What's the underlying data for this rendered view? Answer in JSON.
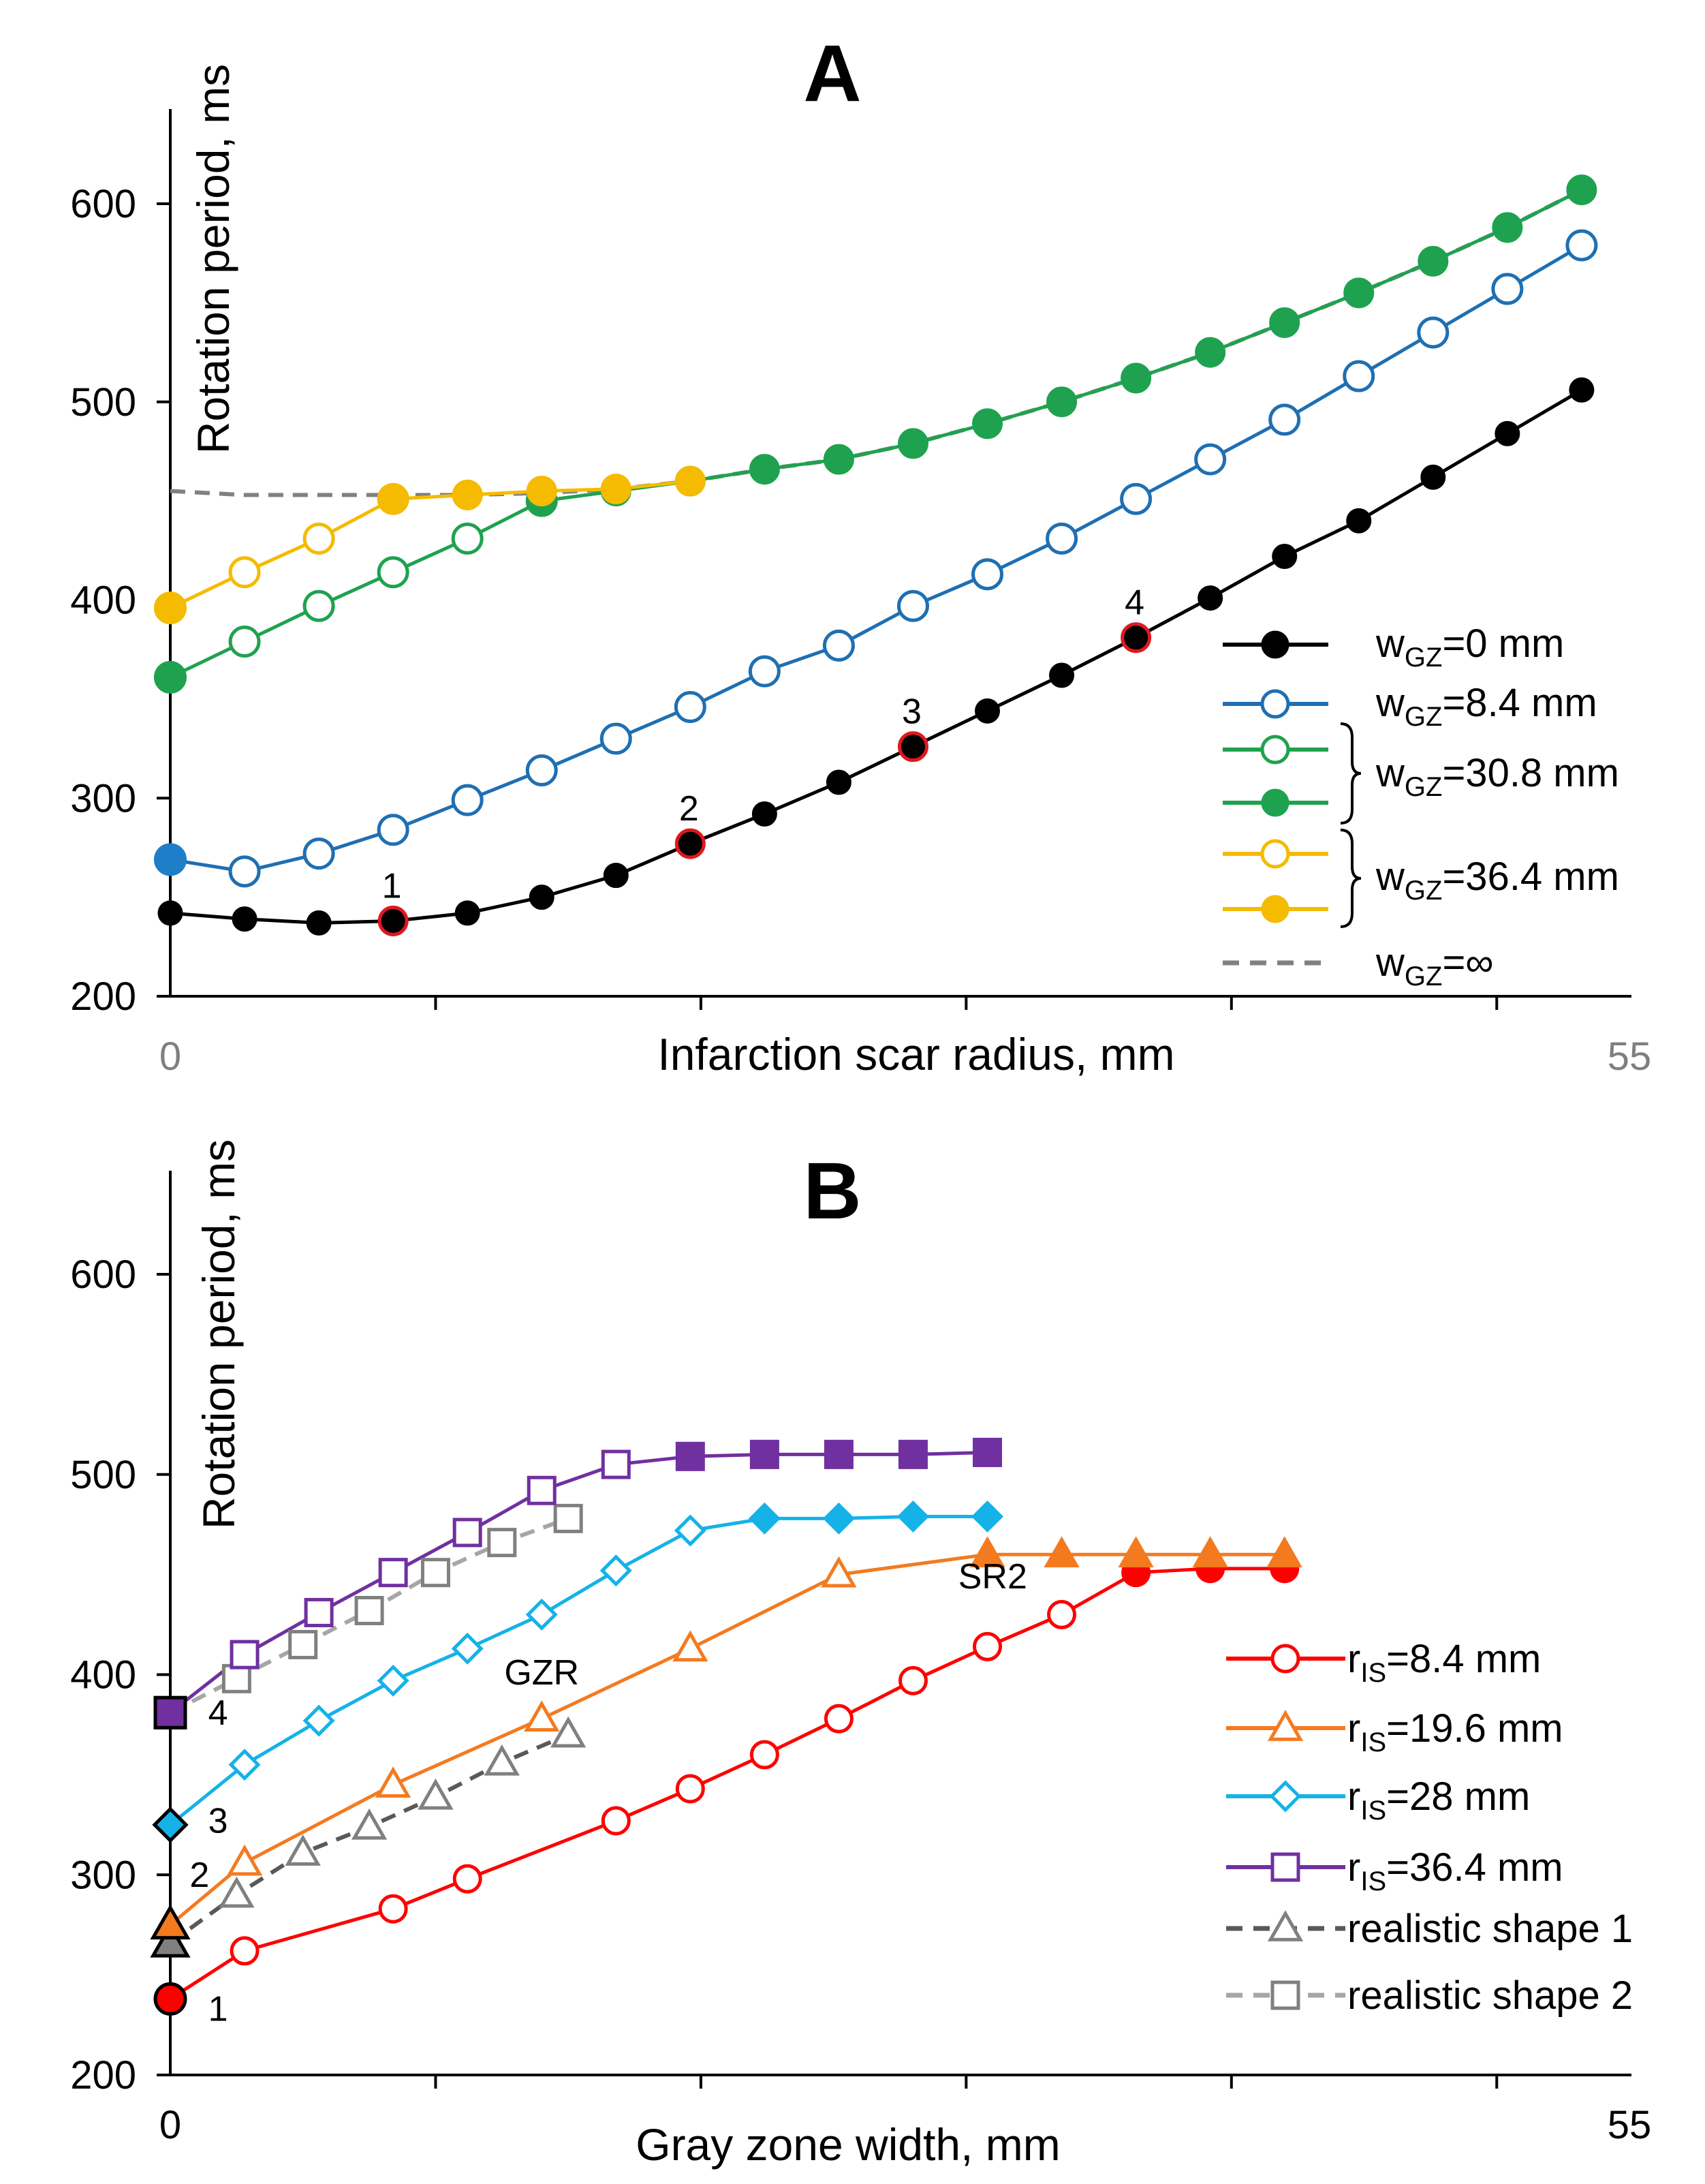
{
  "chart_data": [
    {
      "type": "line",
      "panel": "A",
      "title": "A",
      "xlabel": "Infarction scar radius, mm",
      "ylabel": "Rotation period, ms",
      "xlim": [
        0,
        55
      ],
      "ylim": [
        200,
        650
      ],
      "x_tick_labels": [
        "0",
        "55"
      ],
      "x_minor_ticks": [
        10,
        20,
        30,
        40,
        50
      ],
      "y_ticks": [
        200,
        300,
        400,
        500,
        600
      ],
      "grid": false,
      "legend_position": "right",
      "series": [
        {
          "name": "w_GZ=0 mm",
          "color": "#000000",
          "marker": "circle-filled",
          "dash": false,
          "x": [
            0,
            2.8,
            5.6,
            8.4,
            11.2,
            14,
            16.8,
            19.6,
            22.4,
            25.2,
            28,
            30.8,
            33.6,
            36.4,
            39.2,
            42,
            44.8,
            47.6,
            50.4,
            53.2
          ],
          "y": [
            242,
            239,
            237,
            238,
            242,
            250,
            261,
            277,
            292,
            308,
            326,
            344,
            362,
            381,
            401,
            422,
            440,
            462,
            484,
            506
          ]
        },
        {
          "name": "w_GZ=8.4 mm",
          "color": "#1f6fb2",
          "marker": "circle-open",
          "dash": false,
          "first_point_filled": true,
          "first_point_color": "#1f7ec8",
          "x": [
            0,
            2.8,
            5.6,
            8.4,
            11.2,
            14,
            16.8,
            19.6,
            22.4,
            25.2,
            28,
            30.8,
            33.6,
            36.4,
            39.2,
            42,
            44.8,
            47.6,
            50.4,
            53.2
          ],
          "y": [
            269,
            263,
            272,
            284,
            299,
            314,
            330,
            346,
            364,
            377,
            397,
            413,
            431,
            451,
            471,
            491,
            513,
            535,
            557,
            579
          ]
        },
        {
          "name": "w_GZ=30.8 mm (open)",
          "color": "#1fa24f",
          "marker": "circle-open",
          "dash": false,
          "first_point_filled": true,
          "x": [
            0,
            2.8,
            5.6,
            8.4,
            11.2,
            14
          ],
          "y": [
            361,
            379,
            397,
            414,
            431,
            450
          ]
        },
        {
          "name": "w_GZ=30.8 mm (filled)",
          "color": "#1fa24f",
          "marker": "circle-filled",
          "dash": false,
          "x": [
            14,
            16.8,
            19.6,
            22.4,
            25.2,
            28,
            30.8,
            33.6,
            36.4,
            39.2,
            42,
            44.8,
            47.6,
            50.4,
            53.2
          ],
          "y": [
            450,
            455,
            460,
            466,
            471,
            479,
            489,
            500,
            512,
            525,
            540,
            555,
            571,
            588,
            607
          ]
        },
        {
          "name": "w_GZ=36.4 mm (open)",
          "color": "#f5bb00",
          "marker": "circle-open",
          "dash": false,
          "first_point_filled": true,
          "x": [
            0,
            2.8,
            5.6,
            8.4
          ],
          "y": [
            396,
            414,
            431,
            451
          ]
        },
        {
          "name": "w_GZ=36.4 mm (filled)",
          "color": "#f5bb00",
          "marker": "circle-filled",
          "dash": false,
          "x": [
            8.4,
            11.2,
            14,
            16.8,
            19.6
          ],
          "y": [
            451,
            453,
            455,
            456,
            460
          ]
        },
        {
          "name": "w_GZ=∞",
          "color": "#808080",
          "marker": "none",
          "dash": true,
          "x": [
            0,
            2.8,
            5.6,
            8.4,
            11.2,
            14,
            16.8,
            19.6,
            22.4,
            25.2,
            28,
            30.8,
            33.6,
            36.4,
            39.2,
            42,
            44.8,
            47.6,
            50.4,
            53.2
          ],
          "y": [
            455,
            453,
            453,
            453,
            453,
            454,
            456,
            460,
            466,
            471,
            479,
            489,
            500,
            512,
            525,
            540,
            555,
            571,
            588,
            607
          ]
        }
      ],
      "highlighted_points": [
        {
          "label": "1",
          "x": 8.4,
          "y": 238
        },
        {
          "label": "2",
          "x": 19.6,
          "y": 277
        },
        {
          "label": "3",
          "x": 28,
          "y": 326
        },
        {
          "label": "4",
          "x": 36.4,
          "y": 381
        }
      ],
      "legend": [
        {
          "prefix": "w",
          "sub": "GZ",
          "suffix": "=0 mm"
        },
        {
          "prefix": "w",
          "sub": "GZ",
          "suffix": "=8.4 mm"
        },
        {
          "prefix": "w",
          "sub": "GZ",
          "suffix": "=30.8 mm"
        },
        {
          "prefix": "w",
          "sub": "GZ",
          "suffix": "=36.4 mm"
        },
        {
          "prefix": "w",
          "sub": "GZ",
          "suffix": "=∞"
        }
      ]
    },
    {
      "type": "line",
      "panel": "B",
      "title": "B",
      "xlabel": "Gray zone width, mm",
      "ylabel": "Rotation period, ms",
      "xlim": [
        0,
        55
      ],
      "ylim": [
        200,
        650
      ],
      "x_tick_labels": [
        "0",
        "55"
      ],
      "x_minor_ticks": [
        10,
        20,
        30,
        40,
        50
      ],
      "y_ticks": [
        200,
        300,
        400,
        500,
        600
      ],
      "grid": false,
      "legend_position": "right",
      "series": [
        {
          "name": "r_IS=8.4 mm",
          "color": "#ff0000",
          "marker": "circle",
          "dash": false,
          "x": [
            0,
            2.8,
            8.4,
            11.2,
            16.8,
            19.6,
            22.4,
            25.2,
            28,
            30.8,
            33.6,
            36.4,
            39.2,
            42
          ],
          "y": [
            238,
            262,
            283,
            298,
            327,
            343,
            360,
            378,
            397,
            414,
            430,
            451,
            453,
            453
          ],
          "open": [
            false,
            true,
            true,
            true,
            true,
            true,
            true,
            true,
            true,
            true,
            true,
            false,
            false,
            false
          ]
        },
        {
          "name": "r_IS=19.6 mm",
          "color": "#f47a20",
          "marker": "triangle",
          "dash": false,
          "x": [
            0,
            2.8,
            8.4,
            14,
            19.6,
            25.2,
            30.8,
            33.6,
            36.4,
            39.2,
            42
          ],
          "y": [
            275,
            306,
            345,
            378,
            413,
            450,
            460,
            460,
            460,
            460,
            460
          ],
          "open": [
            false,
            true,
            true,
            true,
            true,
            true,
            false,
            false,
            false,
            false,
            false
          ]
        },
        {
          "name": "r_IS=28 mm",
          "color": "#15b2e8",
          "marker": "diamond",
          "dash": false,
          "x": [
            0,
            2.8,
            5.6,
            8.4,
            11.2,
            14,
            16.8,
            19.6,
            22.4,
            25.2,
            28,
            30.8
          ],
          "y": [
            325,
            355,
            377,
            397,
            413,
            430,
            452,
            472,
            478,
            478,
            479,
            479
          ],
          "open": [
            false,
            true,
            true,
            true,
            true,
            true,
            true,
            true,
            false,
            false,
            false,
            false
          ]
        },
        {
          "name": "r_IS=36.4 mm",
          "color": "#7030a0",
          "marker": "square",
          "dash": false,
          "x": [
            0,
            2.8,
            5.6,
            8.4,
            11.2,
            14,
            16.8,
            19.6,
            22.4,
            25.2,
            28,
            30.8
          ],
          "y": [
            381,
            410,
            431,
            451,
            471,
            492,
            505,
            509,
            510,
            510,
            510,
            511
          ],
          "open": [
            false,
            true,
            true,
            true,
            true,
            true,
            true,
            false,
            false,
            false,
            false,
            false
          ]
        },
        {
          "name": "realistic shape 1",
          "color": "#595959",
          "marker": "triangle",
          "dash": true,
          "marker_color": "#808080",
          "x": [
            0,
            2.5,
            5,
            7.5,
            10,
            12.5,
            15
          ],
          "y": [
            266,
            290,
            311,
            324,
            339,
            356,
            370
          ],
          "open": [
            false,
            true,
            true,
            true,
            true,
            true,
            true
          ]
        },
        {
          "name": "realistic shape 2",
          "color": "#a6a6a6",
          "marker": "square",
          "dash": true,
          "marker_color": "#808080",
          "x": [
            0,
            2.5,
            5,
            7.5,
            10,
            12.5,
            15
          ],
          "y": [
            381,
            398,
            415,
            432,
            451,
            466,
            478
          ],
          "open": [
            false,
            true,
            true,
            true,
            true,
            true,
            true
          ]
        }
      ],
      "annotations": [
        {
          "text": "1",
          "x": 1.8,
          "y": 227
        },
        {
          "text": "2",
          "x": 1.1,
          "y": 294
        },
        {
          "text": "3",
          "x": 1.8,
          "y": 321
        },
        {
          "text": "4",
          "x": 1.8,
          "y": 375
        },
        {
          "text": "GZR",
          "x": 14,
          "y": 395
        },
        {
          "text": "SR2",
          "x": 31,
          "y": 443
        }
      ],
      "legend": [
        {
          "prefix": "r",
          "sub": "IS",
          "suffix": "=8.4 mm"
        },
        {
          "prefix": "r",
          "sub": "IS",
          "suffix": "=19.6 mm"
        },
        {
          "prefix": "r",
          "sub": "IS",
          "suffix": "=28 mm"
        },
        {
          "prefix": "r",
          "sub": "IS",
          "suffix": "=36.4 mm"
        },
        {
          "prefix": "",
          "sub": "",
          "suffix": "realistic shape 1"
        },
        {
          "prefix": "",
          "sub": "",
          "suffix": "realistic shape 2"
        }
      ]
    }
  ]
}
